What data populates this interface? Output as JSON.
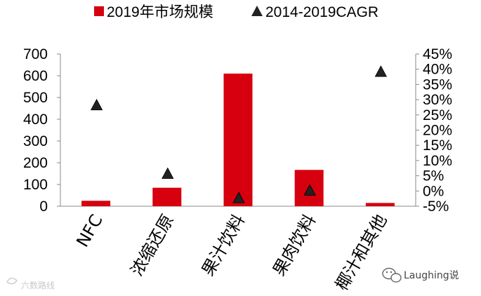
{
  "chart_data": {
    "type": "bar",
    "categories": [
      "NFC",
      "浓缩还原",
      "果汁饮料",
      "果肉饮料",
      "椰汁和其他"
    ],
    "series": [
      {
        "name": "2019年市场规模",
        "type": "bar",
        "axis": "left",
        "color": "#d7000f",
        "values": [
          25,
          85,
          610,
          167,
          15
        ]
      },
      {
        "name": "2014-2019CAGR",
        "type": "scatter",
        "marker": "triangle",
        "axis": "right",
        "color": "#222222",
        "values": [
          0.28,
          0.055,
          -0.025,
          0.0,
          0.39
        ]
      }
    ],
    "y_left": {
      "ylim": [
        0,
        700
      ],
      "ticks": [
        0,
        100,
        200,
        300,
        400,
        500,
        600,
        700
      ],
      "tick_labels": [
        "0",
        "100",
        "200",
        "300",
        "400",
        "500",
        "600",
        "700"
      ]
    },
    "y_right": {
      "ylim": [
        -0.05,
        0.45
      ],
      "ticks": [
        -0.05,
        0,
        0.05,
        0.1,
        0.15,
        0.2,
        0.25,
        0.3,
        0.35,
        0.4,
        0.45
      ],
      "tick_labels": [
        "-5%",
        "0%",
        "5%",
        "10%",
        "15%",
        "20%",
        "25%",
        "30%",
        "35%",
        "40%",
        "45%"
      ]
    },
    "legend": {
      "placement": "top",
      "entries": [
        "2019年市场规模",
        "2014-2019CAGR"
      ]
    },
    "grid": false
  },
  "watermarks": {
    "left": "六数路线",
    "right": "Laughing说"
  }
}
